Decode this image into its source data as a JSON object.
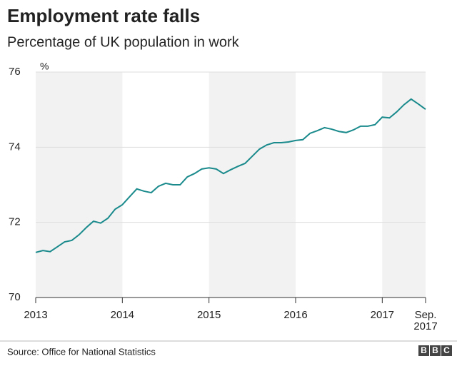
{
  "chart_data": {
    "type": "line",
    "title": "Employment rate falls",
    "subtitle": "Percentage of UK population in work",
    "y_unit": "%",
    "source": "Source: Office for National Statistics",
    "logo": "BBC",
    "x": [
      2013,
      2013.0833,
      2013.1667,
      2013.25,
      2013.3333,
      2013.4167,
      2013.5,
      2013.5833,
      2013.6667,
      2013.75,
      2013.8333,
      2013.9167,
      2014,
      2014.0833,
      2014.1667,
      2014.25,
      2014.3333,
      2014.4167,
      2014.5,
      2014.5833,
      2014.6667,
      2014.75,
      2014.8333,
      2014.9167,
      2015,
      2015.0833,
      2015.1667,
      2015.25,
      2015.3333,
      2015.4167,
      2015.5,
      2015.5833,
      2015.6667,
      2015.75,
      2015.8333,
      2015.9167,
      2016,
      2016.0833,
      2016.1667,
      2016.25,
      2016.3333,
      2016.4167,
      2016.5,
      2016.5833,
      2016.6667,
      2016.75,
      2016.8333,
      2016.9167,
      2017,
      2017.0833,
      2017.1667,
      2017.25,
      2017.3333,
      2017.4167,
      2017.5
    ],
    "series": [
      {
        "name": "Employment rate",
        "color": "#1a8a8c",
        "values": [
          71.2,
          71.25,
          71.22,
          71.35,
          71.48,
          71.52,
          71.67,
          71.86,
          72.03,
          71.98,
          72.11,
          72.35,
          72.47,
          72.68,
          72.89,
          72.83,
          72.79,
          72.96,
          73.04,
          73.0,
          73.0,
          73.21,
          73.3,
          73.42,
          73.45,
          73.42,
          73.3,
          73.4,
          73.49,
          73.57,
          73.76,
          73.95,
          74.06,
          74.12,
          74.12,
          74.14,
          74.18,
          74.2,
          74.37,
          74.44,
          74.52,
          74.48,
          74.42,
          74.39,
          74.46,
          74.56,
          74.56,
          74.6,
          74.8,
          74.78,
          74.94,
          75.13,
          75.28,
          75.15,
          75.01
        ]
      }
    ],
    "xlim": [
      2013,
      2017.5
    ],
    "xticks": [
      2013,
      2014,
      2015,
      2016,
      2017,
      {
        "value": 2017.5,
        "label": "Sep.\n2017"
      }
    ],
    "ylim": [
      70,
      76
    ],
    "yticks": [
      70,
      72,
      74,
      76
    ],
    "grid": true,
    "shaded_bands": true
  }
}
